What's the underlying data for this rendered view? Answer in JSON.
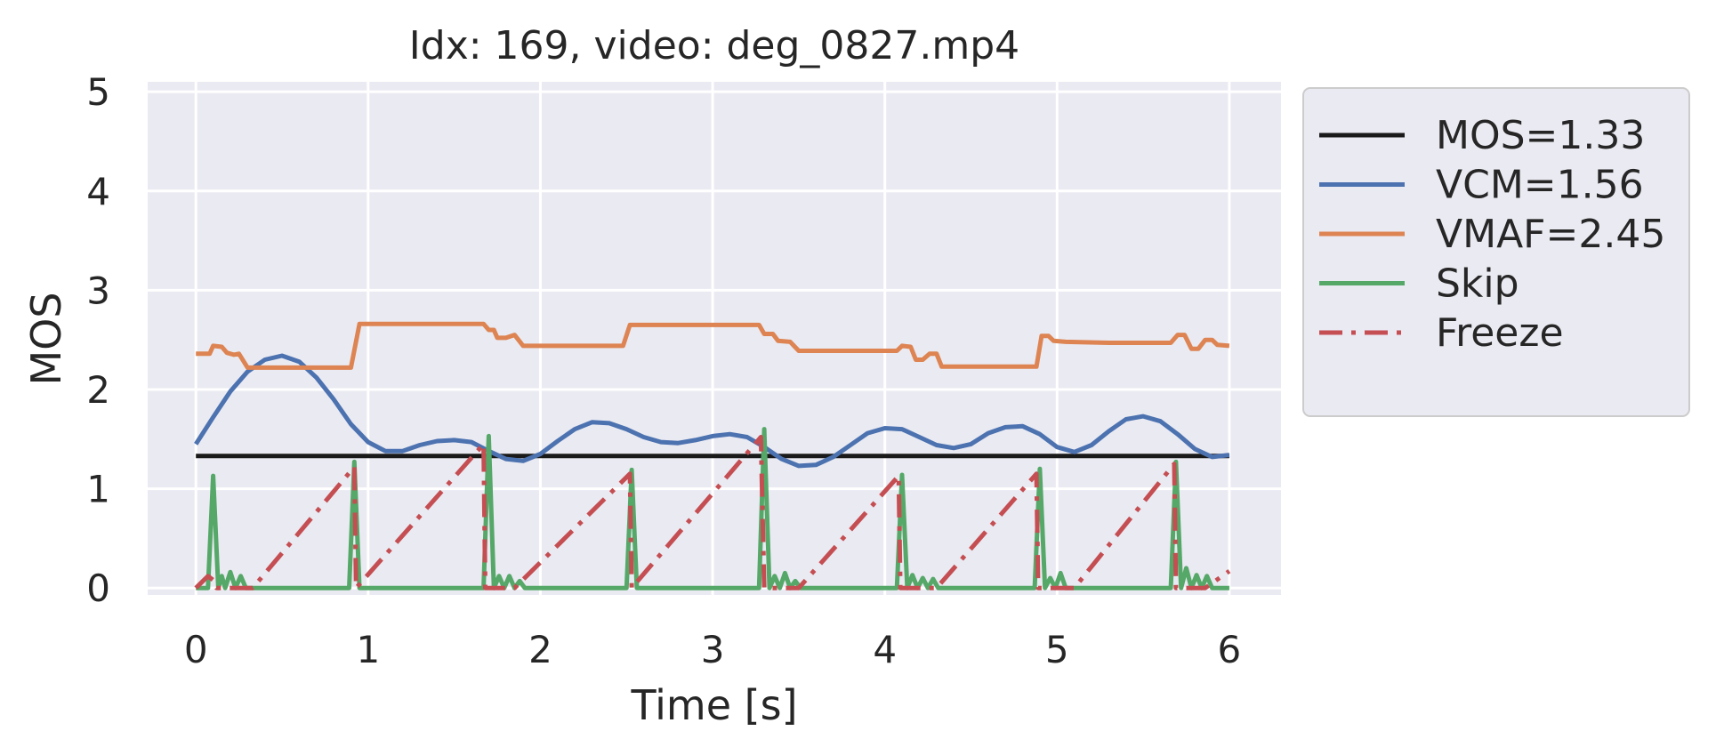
{
  "chart_data": {
    "type": "line",
    "title": "Idx: 169, video: deg_0827.mp4",
    "xlabel": "Time [s]",
    "ylabel": "MOS",
    "xlim": [
      -0.28,
      6.3
    ],
    "ylim": [
      -0.07,
      5.1
    ],
    "xticks": [
      0,
      1,
      2,
      3,
      4,
      5,
      6
    ],
    "yticks": [
      0,
      1,
      2,
      3,
      4,
      5
    ],
    "grid": true,
    "legend_position": "outside-right",
    "background_color": "#eaeaf2",
    "series": [
      {
        "name": "MOS=1.33",
        "color": "#1a1a1a",
        "dash": "solid",
        "points": [
          [
            0,
            1.33
          ],
          [
            6,
            1.33
          ]
        ]
      },
      {
        "name": "VCM=1.56",
        "color": "#4c72b0",
        "dash": "solid",
        "points": [
          [
            0,
            1.45
          ],
          [
            0.1,
            1.72
          ],
          [
            0.2,
            1.98
          ],
          [
            0.3,
            2.18
          ],
          [
            0.4,
            2.3
          ],
          [
            0.5,
            2.34
          ],
          [
            0.6,
            2.28
          ],
          [
            0.7,
            2.12
          ],
          [
            0.8,
            1.9
          ],
          [
            0.9,
            1.65
          ],
          [
            1.0,
            1.47
          ],
          [
            1.1,
            1.38
          ],
          [
            1.2,
            1.38
          ],
          [
            1.3,
            1.44
          ],
          [
            1.4,
            1.48
          ],
          [
            1.5,
            1.49
          ],
          [
            1.6,
            1.47
          ],
          [
            1.7,
            1.38
          ],
          [
            1.8,
            1.3
          ],
          [
            1.9,
            1.28
          ],
          [
            2.0,
            1.35
          ],
          [
            2.1,
            1.48
          ],
          [
            2.2,
            1.6
          ],
          [
            2.3,
            1.67
          ],
          [
            2.4,
            1.66
          ],
          [
            2.5,
            1.6
          ],
          [
            2.6,
            1.52
          ],
          [
            2.7,
            1.47
          ],
          [
            2.8,
            1.46
          ],
          [
            2.9,
            1.49
          ],
          [
            3.0,
            1.53
          ],
          [
            3.1,
            1.55
          ],
          [
            3.2,
            1.52
          ],
          [
            3.3,
            1.42
          ],
          [
            3.4,
            1.3
          ],
          [
            3.5,
            1.23
          ],
          [
            3.6,
            1.24
          ],
          [
            3.7,
            1.32
          ],
          [
            3.8,
            1.44
          ],
          [
            3.9,
            1.56
          ],
          [
            4.0,
            1.61
          ],
          [
            4.1,
            1.6
          ],
          [
            4.2,
            1.52
          ],
          [
            4.3,
            1.44
          ],
          [
            4.4,
            1.41
          ],
          [
            4.5,
            1.45
          ],
          [
            4.6,
            1.56
          ],
          [
            4.7,
            1.62
          ],
          [
            4.8,
            1.63
          ],
          [
            4.9,
            1.55
          ],
          [
            5.0,
            1.42
          ],
          [
            5.1,
            1.37
          ],
          [
            5.2,
            1.44
          ],
          [
            5.3,
            1.58
          ],
          [
            5.4,
            1.7
          ],
          [
            5.5,
            1.73
          ],
          [
            5.6,
            1.68
          ],
          [
            5.7,
            1.55
          ],
          [
            5.8,
            1.4
          ],
          [
            5.9,
            1.32
          ],
          [
            6.0,
            1.34
          ]
        ]
      },
      {
        "name": "VMAF=2.45",
        "color": "#dd8452",
        "dash": "solid",
        "points": [
          [
            0,
            2.36
          ],
          [
            0.08,
            2.36
          ],
          [
            0.1,
            2.44
          ],
          [
            0.15,
            2.43
          ],
          [
            0.18,
            2.37
          ],
          [
            0.22,
            2.35
          ],
          [
            0.25,
            2.36
          ],
          [
            0.3,
            2.22
          ],
          [
            0.4,
            2.22
          ],
          [
            0.6,
            2.22
          ],
          [
            0.9,
            2.22
          ],
          [
            0.95,
            2.66
          ],
          [
            1.2,
            2.66
          ],
          [
            1.5,
            2.66
          ],
          [
            1.67,
            2.66
          ],
          [
            1.7,
            2.6
          ],
          [
            1.73,
            2.6
          ],
          [
            1.75,
            2.52
          ],
          [
            1.8,
            2.52
          ],
          [
            1.85,
            2.55
          ],
          [
            1.9,
            2.44
          ],
          [
            2.0,
            2.44
          ],
          [
            2.2,
            2.44
          ],
          [
            2.48,
            2.44
          ],
          [
            2.52,
            2.65
          ],
          [
            2.8,
            2.65
          ],
          [
            3.1,
            2.65
          ],
          [
            3.27,
            2.65
          ],
          [
            3.3,
            2.56
          ],
          [
            3.35,
            2.56
          ],
          [
            3.38,
            2.49
          ],
          [
            3.45,
            2.48
          ],
          [
            3.5,
            2.39
          ],
          [
            3.7,
            2.39
          ],
          [
            3.9,
            2.39
          ],
          [
            4.07,
            2.39
          ],
          [
            4.1,
            2.44
          ],
          [
            4.15,
            2.43
          ],
          [
            4.18,
            2.3
          ],
          [
            4.22,
            2.3
          ],
          [
            4.26,
            2.36
          ],
          [
            4.3,
            2.36
          ],
          [
            4.33,
            2.23
          ],
          [
            4.5,
            2.23
          ],
          [
            4.7,
            2.23
          ],
          [
            4.88,
            2.23
          ],
          [
            4.91,
            2.54
          ],
          [
            4.95,
            2.54
          ],
          [
            4.98,
            2.49
          ],
          [
            5.05,
            2.48
          ],
          [
            5.3,
            2.47
          ],
          [
            5.6,
            2.47
          ],
          [
            5.66,
            2.47
          ],
          [
            5.7,
            2.55
          ],
          [
            5.74,
            2.55
          ],
          [
            5.78,
            2.41
          ],
          [
            5.82,
            2.41
          ],
          [
            5.86,
            2.5
          ],
          [
            5.9,
            2.5
          ],
          [
            5.93,
            2.45
          ],
          [
            6.0,
            2.44
          ]
        ]
      },
      {
        "name": "Skip",
        "color": "#55a868",
        "dash": "solid",
        "points": [
          [
            0,
            0
          ],
          [
            0.07,
            0
          ],
          [
            0.1,
            1.13
          ],
          [
            0.13,
            0
          ],
          [
            0.15,
            0.12
          ],
          [
            0.17,
            0
          ],
          [
            0.2,
            0.16
          ],
          [
            0.23,
            0
          ],
          [
            0.26,
            0.12
          ],
          [
            0.29,
            0
          ],
          [
            0.32,
            0
          ],
          [
            0.6,
            0
          ],
          [
            0.89,
            0
          ],
          [
            0.92,
            1.27
          ],
          [
            0.95,
            0
          ],
          [
            1.3,
            0
          ],
          [
            1.67,
            0
          ],
          [
            1.7,
            1.53
          ],
          [
            1.73,
            0
          ],
          [
            1.76,
            0.12
          ],
          [
            1.79,
            0
          ],
          [
            1.82,
            0.12
          ],
          [
            1.85,
            0
          ],
          [
            1.88,
            0.07
          ],
          [
            1.91,
            0
          ],
          [
            2.2,
            0
          ],
          [
            2.5,
            0
          ],
          [
            2.53,
            1.19
          ],
          [
            2.56,
            0
          ],
          [
            2.9,
            0
          ],
          [
            3.27,
            0
          ],
          [
            3.3,
            1.6
          ],
          [
            3.33,
            0
          ],
          [
            3.36,
            0.12
          ],
          [
            3.39,
            0
          ],
          [
            3.42,
            0.15
          ],
          [
            3.45,
            0
          ],
          [
            3.48,
            0.07
          ],
          [
            3.51,
            0
          ],
          [
            3.8,
            0
          ],
          [
            4.07,
            0
          ],
          [
            4.1,
            1.14
          ],
          [
            4.13,
            0
          ],
          [
            4.16,
            0.13
          ],
          [
            4.19,
            0
          ],
          [
            4.22,
            0.1
          ],
          [
            4.25,
            0
          ],
          [
            4.28,
            0.09
          ],
          [
            4.31,
            0
          ],
          [
            4.6,
            0
          ],
          [
            4.87,
            0
          ],
          [
            4.9,
            1.2
          ],
          [
            4.93,
            0
          ],
          [
            4.96,
            0.1
          ],
          [
            4.99,
            0
          ],
          [
            5.02,
            0.15
          ],
          [
            5.05,
            0
          ],
          [
            5.4,
            0
          ],
          [
            5.66,
            0
          ],
          [
            5.69,
            1.27
          ],
          [
            5.72,
            0
          ],
          [
            5.75,
            0.2
          ],
          [
            5.78,
            0
          ],
          [
            5.81,
            0.13
          ],
          [
            5.84,
            0
          ],
          [
            5.87,
            0.12
          ],
          [
            5.9,
            0
          ],
          [
            6.0,
            0
          ]
        ]
      },
      {
        "name": "Freeze",
        "color": "#c44e52",
        "dash": "dashdot",
        "points": [
          [
            0,
            0
          ],
          [
            0.07,
            0.12
          ],
          [
            0.1,
            0.08
          ],
          [
            0.12,
            0
          ],
          [
            0.17,
            0
          ],
          [
            0.22,
            0
          ],
          [
            0.27,
            0
          ],
          [
            0.33,
            0
          ],
          [
            0.92,
            1.22
          ],
          [
            0.93,
            0
          ],
          [
            1.67,
            1.45
          ],
          [
            1.68,
            0
          ],
          [
            1.72,
            0
          ],
          [
            1.78,
            0
          ],
          [
            1.85,
            0
          ],
          [
            2.52,
            1.15
          ],
          [
            2.53,
            0
          ],
          [
            3.28,
            1.52
          ],
          [
            3.3,
            0
          ],
          [
            3.35,
            0
          ],
          [
            3.41,
            0
          ],
          [
            3.5,
            0
          ],
          [
            4.08,
            1.13
          ],
          [
            4.09,
            0
          ],
          [
            4.14,
            0
          ],
          [
            4.2,
            0
          ],
          [
            4.3,
            0
          ],
          [
            4.88,
            1.15
          ],
          [
            4.89,
            0
          ],
          [
            4.94,
            0
          ],
          [
            5.0,
            0
          ],
          [
            5.1,
            0
          ],
          [
            5.68,
            1.25
          ],
          [
            5.69,
            0
          ],
          [
            5.74,
            0
          ],
          [
            5.8,
            0
          ],
          [
            5.86,
            0
          ],
          [
            6.0,
            0.17
          ]
        ]
      }
    ]
  }
}
